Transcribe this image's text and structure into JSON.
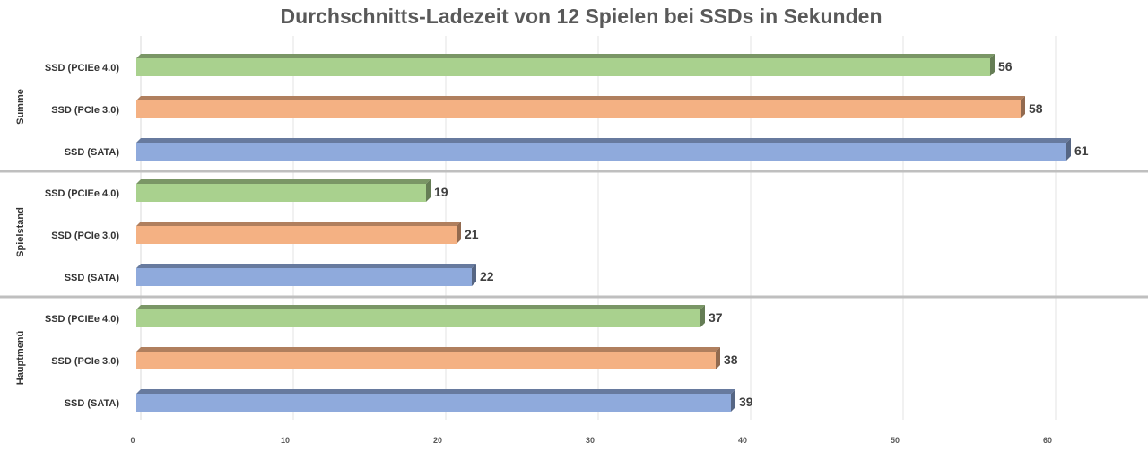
{
  "chart_data": {
    "type": "bar",
    "orientation": "horizontal",
    "title": "Durchschnitts-Ladezeit von 12 Spielen bei SSDs in Sekunden",
    "xlabel": "",
    "ylabel": "",
    "xlim": [
      0,
      64
    ],
    "xticks": [
      "0",
      "10",
      "20",
      "30",
      "40",
      "50",
      "60"
    ],
    "grid": true,
    "legend": "none",
    "colors": {
      "SSD (PCIEe 4.0)": "#a9d18e",
      "SSD (PCIe 3.0)": "#f4b183",
      "SSD (SATA)": "#8faadc"
    },
    "groups": [
      {
        "name": "Summe",
        "bars": [
          {
            "label": "SSD (PCIEe 4.0)",
            "value": 56,
            "value_label": "56"
          },
          {
            "label": "SSD (PCIe 3.0)",
            "value": 58,
            "value_label": "58"
          },
          {
            "label": "SSD (SATA)",
            "value": 61,
            "value_label": "61"
          }
        ]
      },
      {
        "name": "Spielstand",
        "bars": [
          {
            "label": "SSD (PCIEe 4.0)",
            "value": 19,
            "value_label": "19"
          },
          {
            "label": "SSD (PCIe 3.0)",
            "value": 21,
            "value_label": "21"
          },
          {
            "label": "SSD (SATA)",
            "value": 22,
            "value_label": "22"
          }
        ]
      },
      {
        "name": "Hauptmenü",
        "bars": [
          {
            "label": "SSD (PCIEe 4.0)",
            "value": 37,
            "value_label": "37"
          },
          {
            "label": "SSD (PCIe 3.0)",
            "value": 38,
            "value_label": "38"
          },
          {
            "label": "SSD (SATA)",
            "value": 39,
            "value_label": "39"
          }
        ]
      }
    ]
  }
}
